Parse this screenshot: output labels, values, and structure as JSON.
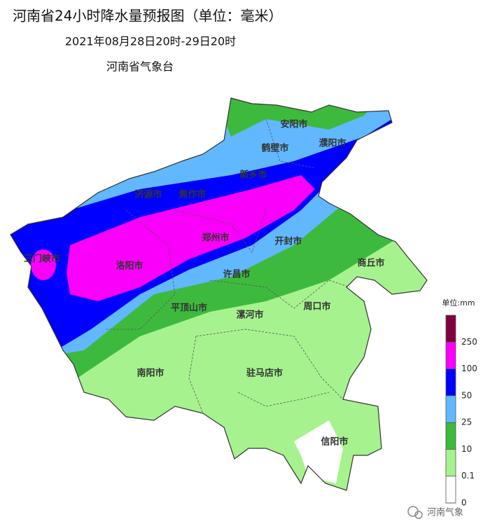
{
  "header": {
    "title": "河南省24小时降水量预报图（单位：毫米）",
    "period": "2021年08月28日20时-29日20时",
    "issuer": "河南省气象台"
  },
  "map": {
    "cities": [
      "安阳市",
      "鹤壁市",
      "濮阳市",
      "新乡市",
      "济源市",
      "焦作市",
      "郑州市",
      "开封市",
      "三门峡市",
      "洛阳市",
      "商丘市",
      "许昌市",
      "平顶山市",
      "漯河市",
      "周口市",
      "南阳市",
      "驻马店市",
      "信阳市"
    ]
  },
  "legend": {
    "unit": "单位:mm",
    "ticks": [
      0,
      0.1,
      10,
      25,
      50,
      100,
      250
    ],
    "colors": [
      "#ffffff",
      "#a6f28f",
      "#3dba3d",
      "#61b8ff",
      "#0000fe",
      "#fa00fa",
      "#800040"
    ]
  },
  "watermark": "河南气象"
}
